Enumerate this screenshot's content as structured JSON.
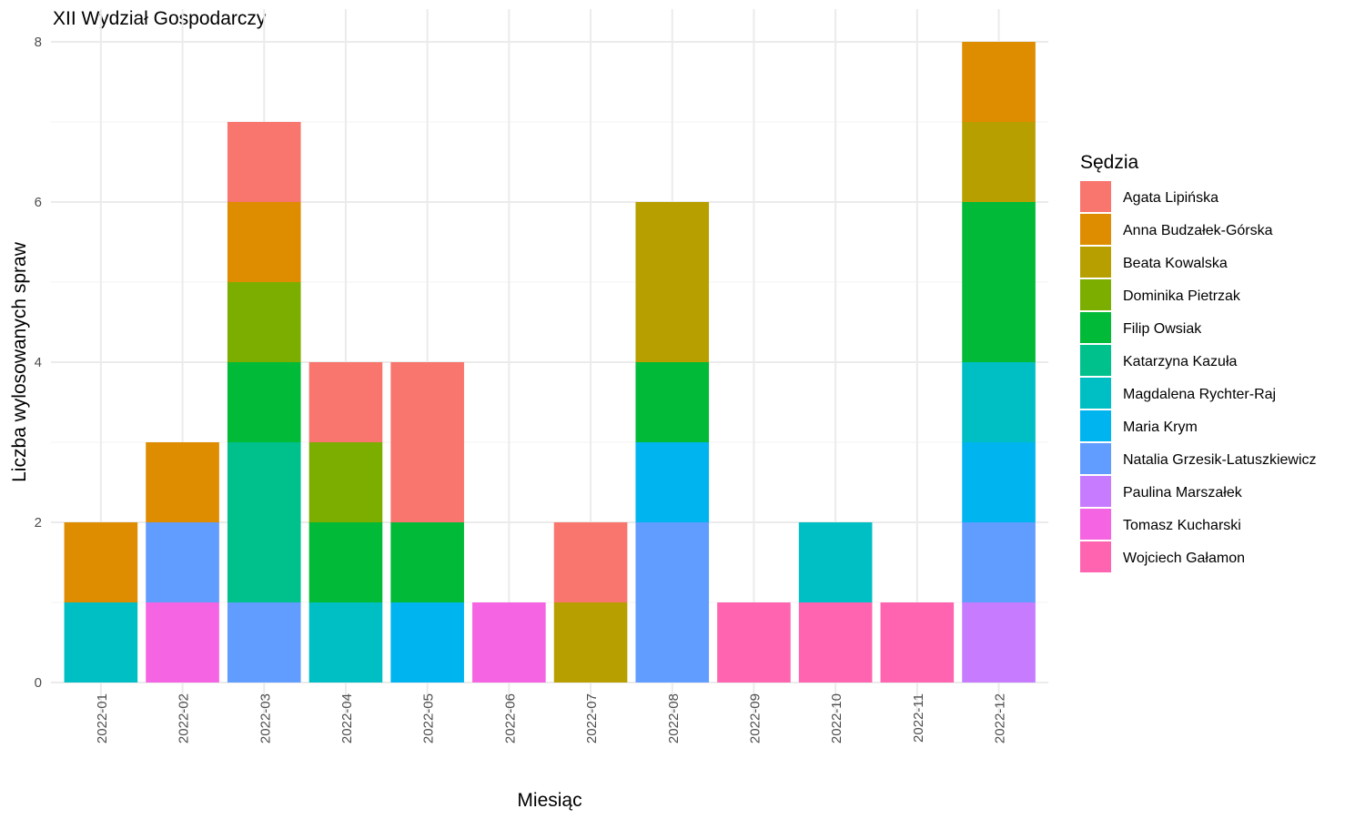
{
  "chart_data": {
    "type": "bar",
    "stacked": true,
    "title": "XII Wydział Gospodarczy",
    "xlabel": "Miesiąc",
    "ylabel": "Liczba wylosowanych spraw",
    "ylim": [
      0,
      8
    ],
    "yticks": [
      0,
      2,
      4,
      6,
      8
    ],
    "grid": true,
    "legend_position": "right",
    "legend_title": "Sędzia",
    "categories": [
      "2022-01",
      "2022-02",
      "2022-03",
      "2022-04",
      "2022-05",
      "2022-06",
      "2022-07",
      "2022-08",
      "2022-09",
      "2022-10",
      "2022-11",
      "2022-12"
    ],
    "series": [
      {
        "name": "Agata Lipińska",
        "color": "#F8766D",
        "values": [
          0,
          0,
          1,
          1,
          2,
          0,
          1,
          0,
          0,
          0,
          0,
          0
        ]
      },
      {
        "name": "Anna Budzałek-Górska",
        "color": "#DE8C00",
        "values": [
          1,
          1,
          1,
          0,
          0,
          0,
          0,
          0,
          0,
          0,
          0,
          1
        ]
      },
      {
        "name": "Beata Kowalska",
        "color": "#B79F00",
        "values": [
          0,
          0,
          0,
          0,
          0,
          0,
          1,
          2,
          0,
          0,
          0,
          1
        ]
      },
      {
        "name": "Dominika Pietrzak",
        "color": "#7CAE00",
        "values": [
          0,
          0,
          1,
          1,
          0,
          0,
          0,
          0,
          0,
          0,
          0,
          0
        ]
      },
      {
        "name": "Filip Owsiak",
        "color": "#00BA38",
        "values": [
          0,
          0,
          1,
          1,
          1,
          0,
          0,
          1,
          0,
          0,
          0,
          2
        ]
      },
      {
        "name": "Katarzyna Kazuła",
        "color": "#00C08B",
        "values": [
          0,
          0,
          2,
          0,
          0,
          0,
          0,
          0,
          0,
          0,
          0,
          0
        ]
      },
      {
        "name": "Magdalena Rychter-Raj",
        "color": "#00BFC4",
        "values": [
          1,
          0,
          0,
          1,
          0,
          0,
          0,
          0,
          0,
          1,
          0,
          1
        ]
      },
      {
        "name": "Maria Krym",
        "color": "#00B4F0",
        "values": [
          0,
          0,
          0,
          0,
          1,
          0,
          0,
          1,
          0,
          0,
          0,
          1
        ]
      },
      {
        "name": "Natalia Grzesik-Latuszkiewicz",
        "color": "#619CFF",
        "values": [
          0,
          1,
          1,
          0,
          0,
          0,
          0,
          2,
          0,
          0,
          0,
          1
        ]
      },
      {
        "name": "Paulina Marszałek",
        "color": "#C77CFF",
        "values": [
          0,
          0,
          0,
          0,
          0,
          0,
          0,
          0,
          0,
          0,
          0,
          1
        ]
      },
      {
        "name": "Tomasz Kucharski",
        "color": "#F564E3",
        "values": [
          0,
          1,
          0,
          0,
          0,
          1,
          0,
          0,
          0,
          0,
          0,
          0
        ]
      },
      {
        "name": "Wojciech Gałamon",
        "color": "#FF64B0",
        "values": [
          0,
          0,
          0,
          0,
          0,
          0,
          0,
          0,
          1,
          1,
          1,
          0
        ]
      }
    ]
  }
}
